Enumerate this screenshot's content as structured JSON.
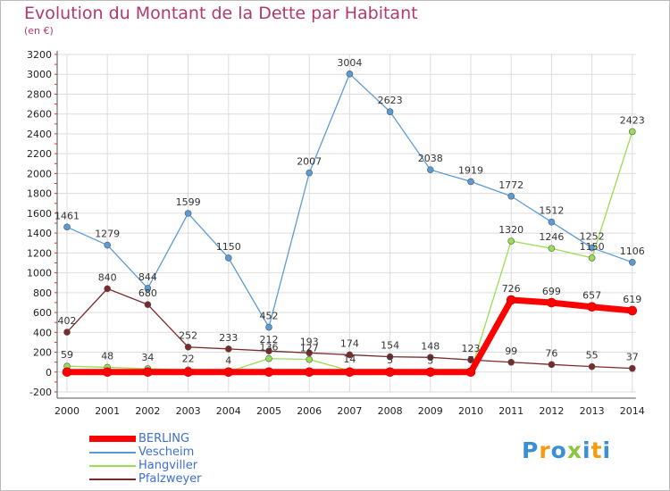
{
  "header": {
    "title": "Evolution du Montant de la Dette par Habitant",
    "subtitle": "(en €)"
  },
  "chart_data": {
    "type": "line",
    "x": [
      "2000",
      "2001",
      "2002",
      "2003",
      "2004",
      "2005",
      "2006",
      "2007",
      "2008",
      "2009",
      "2010",
      "2011",
      "2012",
      "2013",
      "2014"
    ],
    "ylim": [
      -200,
      3200
    ],
    "yticks": [
      -200,
      0,
      200,
      400,
      600,
      800,
      1000,
      1200,
      1400,
      1600,
      1800,
      2000,
      2200,
      2400,
      2600,
      2800,
      3000,
      3200
    ],
    "grid": true,
    "legend_position": "bottom-left",
    "series": [
      {
        "name": "BERLING",
        "color": "#ff0000",
        "values": [
          0,
          0,
          0,
          0,
          0,
          0,
          0,
          0,
          0,
          0,
          0,
          726,
          699,
          657,
          619
        ],
        "labels": [
          null,
          null,
          null,
          null,
          null,
          null,
          null,
          null,
          null,
          null,
          null,
          "726",
          "699",
          "657",
          "619"
        ]
      },
      {
        "name": "Vescheim",
        "color": "#5b9bd5",
        "values": [
          1461,
          1279,
          844,
          1599,
          1150,
          452,
          2007,
          3004,
          2623,
          2038,
          1919,
          1772,
          1512,
          1252,
          1106
        ],
        "labels": [
          "1461",
          "1279",
          "844",
          "1599",
          "1150",
          "452",
          "2007",
          "3004",
          "2623",
          "2038",
          "1919",
          "1772",
          "1512",
          "1252",
          "1106"
        ]
      },
      {
        "name": "Hangviller",
        "color": "#99dd55",
        "values": [
          59,
          48,
          34,
          22,
          4,
          136,
          127,
          14,
          5,
          3,
          7,
          1320,
          1246,
          1150,
          2423
        ],
        "labels": [
          "59",
          "48",
          "34",
          "22",
          "4",
          "136",
          "127",
          "14",
          "5",
          "3",
          "7",
          "1320",
          "1246",
          "1150",
          "2423"
        ]
      },
      {
        "name": "Pfalzweyer",
        "color": "#7a2a2a",
        "values": [
          402,
          840,
          680,
          252,
          233,
          212,
          193,
          174,
          154,
          148,
          123,
          99,
          76,
          55,
          37
        ],
        "labels": [
          "402",
          "840",
          "680",
          "252",
          "233",
          "212",
          "193",
          "174",
          "154",
          "148",
          "123",
          "99",
          "76",
          "55",
          "37"
        ]
      }
    ]
  },
  "legend": {
    "items": [
      {
        "label": "BERLING",
        "color": "#ff0000",
        "text_color": "#3d6fd0"
      },
      {
        "label": "Vescheim",
        "color": "#5b9bd5",
        "text_color": "#3d6fd0"
      },
      {
        "label": "Hangviller",
        "color": "#99dd55",
        "text_color": "#3d6fd0"
      },
      {
        "label": "Pfalzweyer",
        "color": "#7a2a2a",
        "text_color": "#3d6fd0"
      }
    ]
  },
  "logo": {
    "text": "Proxiti",
    "colors": [
      "#3a8fd6",
      "#f39c12",
      "#3a8fd6",
      "#8cc63f",
      "#3a8fd6",
      "#f39c12",
      "#3a8fd6"
    ]
  }
}
